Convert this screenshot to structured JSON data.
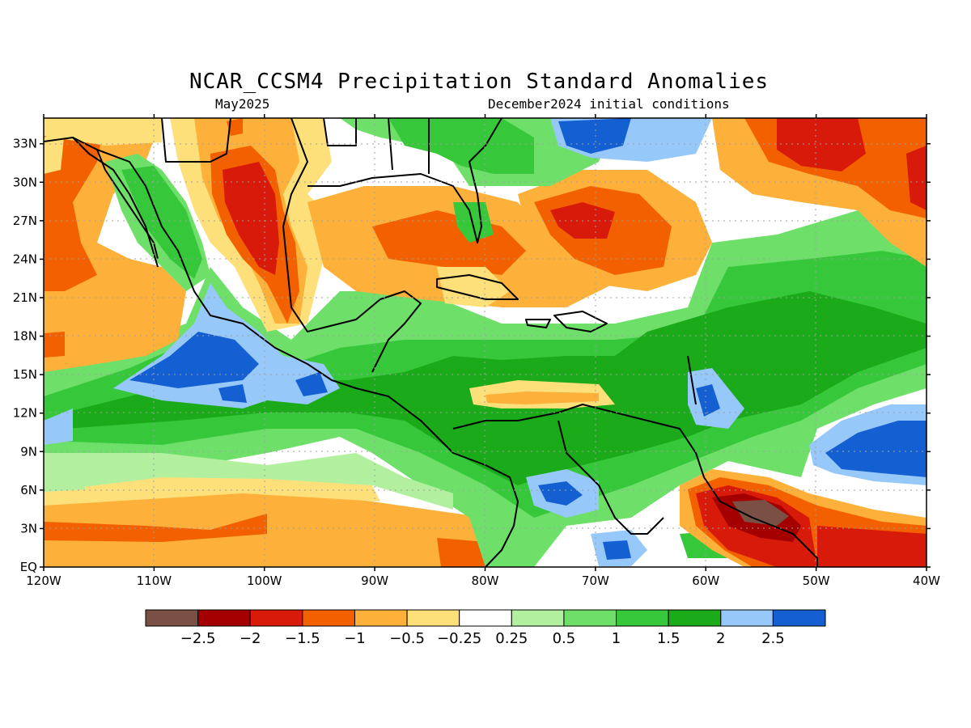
{
  "header": {
    "title": "NCAR_CCSM4 Precipitation Standard Anomalies",
    "valid_month": "May2025",
    "init": "December2024 initial conditions"
  },
  "map": {
    "region": "Caribbean / Central America",
    "lon_range": [
      -120,
      -40
    ],
    "lat_range": [
      0,
      35
    ],
    "lat_labels": [
      "33N",
      "30N",
      "27N",
      "24N",
      "21N",
      "18N",
      "15N",
      "12N",
      "9N",
      "6N",
      "3N",
      "EQ"
    ],
    "lon_labels": [
      "120W",
      "110W",
      "100W",
      "90W",
      "80W",
      "70W",
      "60W",
      "50W",
      "40W"
    ],
    "gridlines": "dotted"
  },
  "colorbar": {
    "colors": [
      "#7a5045",
      "#a50000",
      "#d81a0a",
      "#f26000",
      "#fdb03a",
      "#fde07a",
      "#ffffff",
      "#b2f0a0",
      "#6ee06a",
      "#36c83a",
      "#1aaa1a",
      "#96c8fa",
      "#1460d2"
    ],
    "labels": [
      "−2.5",
      "−2",
      "−1.5",
      "−1",
      "−0.5",
      "−0.25",
      "0.25",
      "0.5",
      "1",
      "1.5",
      "2",
      "2.5"
    ]
  }
}
